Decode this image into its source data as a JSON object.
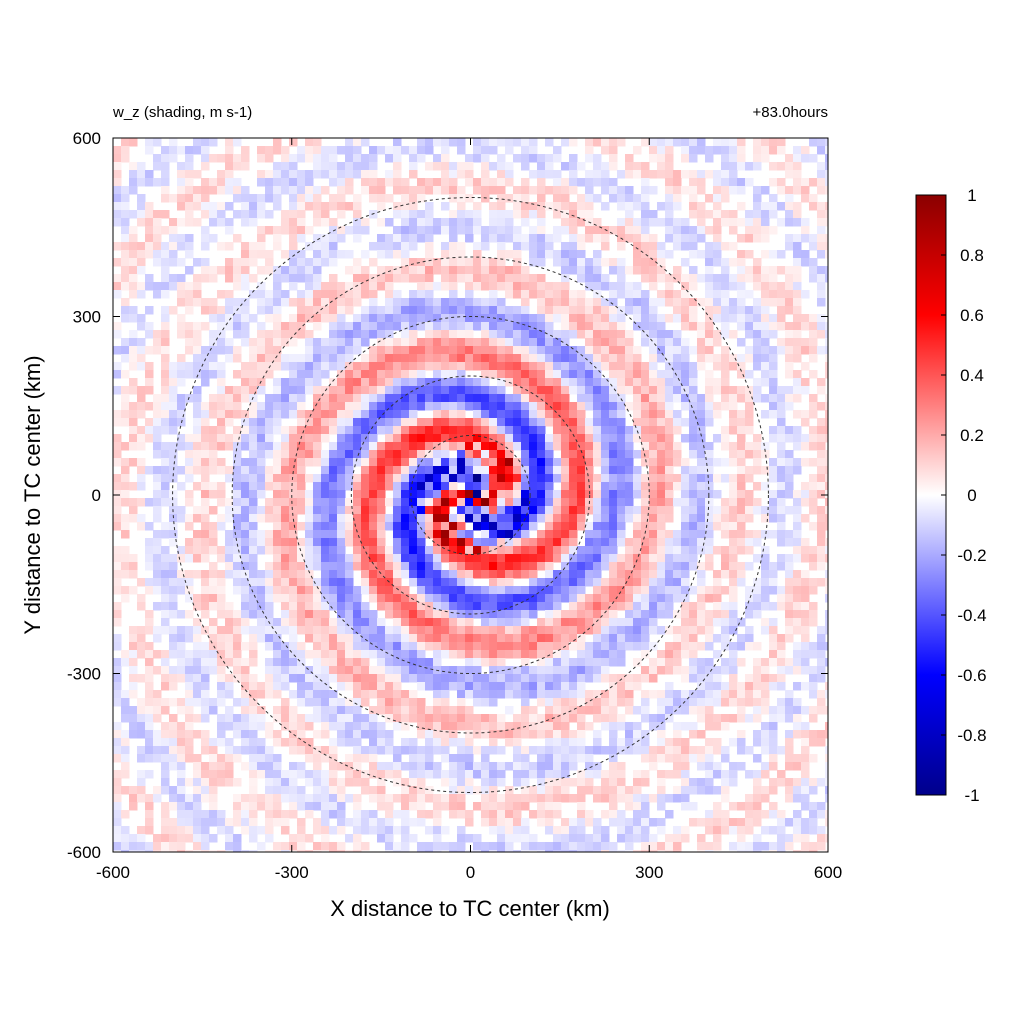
{
  "chart_data": {
    "type": "heatmap",
    "title_left": "w_z (shading, m s-1)",
    "title_right": "+83.0hours",
    "xlabel": "X distance to TC center (km)",
    "ylabel": "Y distance to TC center (km)",
    "xlim": [
      -600,
      600
    ],
    "ylim": [
      -600,
      600
    ],
    "xticks": [
      -600,
      -300,
      0,
      300,
      600
    ],
    "yticks": [
      -600,
      -300,
      0,
      300,
      600
    ],
    "xtick_labels": [
      "-600",
      "-300",
      "0",
      "300",
      "600"
    ],
    "ytick_labels": [
      "-600",
      "-300",
      "0",
      "300",
      "600"
    ],
    "range_rings_km": [
      100,
      200,
      300,
      400,
      500
    ],
    "ring_style": "dashed",
    "colorbar": {
      "range": [
        -1,
        1
      ],
      "ticks": [
        1,
        0.8,
        0.6,
        0.4,
        0.2,
        0,
        -0.2,
        -0.4,
        -0.6,
        -0.8,
        -1
      ],
      "tick_labels": [
        "1",
        "0.8",
        "0.6",
        "0.4",
        "0.2",
        "0",
        "-0.2",
        "-0.4",
        "-0.6",
        "-0.8",
        "-1"
      ],
      "colors": {
        "min": "#00008b",
        "low": "#0000ff",
        "mid": "#ffffff",
        "high": "#ff0000",
        "max": "#8b0000"
      }
    },
    "field_description_visible": "near-zero vertical velocity perturbations with spiral bands of alternating positive (red) and negative (blue) values concentrated within 300 km of the center"
  }
}
